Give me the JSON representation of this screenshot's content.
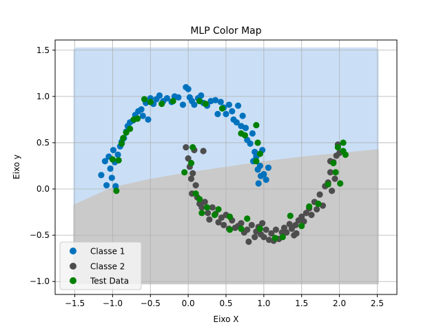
{
  "chart_data": {
    "type": "scatter",
    "title": "MLP Color Map",
    "xlabel": "Eixo X",
    "ylabel": "Eixo y",
    "xlim": [
      -1.76,
      2.76
    ],
    "ylim": [
      -1.14,
      1.61
    ],
    "x_ticks": [
      -1.5,
      -1.0,
      -0.5,
      0.0,
      0.5,
      1.0,
      1.5,
      2.0,
      2.5
    ],
    "x_tick_labels": [
      "−1.5",
      "−1.0",
      "−0.5",
      "0.0",
      "0.5",
      "1.0",
      "1.5",
      "2.0",
      "2.5"
    ],
    "y_ticks": [
      -1.0,
      -0.5,
      0.0,
      0.5,
      1.0,
      1.5
    ],
    "y_tick_labels": [
      "−1.0",
      "−0.5",
      "0.0",
      "0.5",
      "1.0",
      "1.5"
    ],
    "grid": true,
    "legend_position": "lower-left",
    "colors": {
      "region_class1": "#cadff6",
      "region_class2": "#cacaca",
      "class1": "#0072bd",
      "class2": "#4d4d4d",
      "test": "#008000",
      "grid": "#b0b0b0",
      "legend_bg": "#f5f5f5"
    },
    "decision_region": {
      "x_range": [
        -1.52,
        2.52
      ],
      "y_range": [
        -1.03,
        1.53
      ],
      "boundary": [
        [
          -1.52,
          -0.17
        ],
        [
          -1.0,
          0.02
        ],
        [
          -0.5,
          0.11
        ],
        [
          0.0,
          0.18
        ],
        [
          0.5,
          0.24
        ],
        [
          1.0,
          0.3
        ],
        [
          1.5,
          0.35
        ],
        [
          2.0,
          0.39
        ],
        [
          2.52,
          0.43
        ]
      ]
    },
    "series": [
      {
        "name": "Classe 1",
        "color": "#0072bd",
        "points": [
          [
            -1.15,
            0.15
          ],
          [
            -1.1,
            0.3
          ],
          [
            -1.08,
            0.04
          ],
          [
            -1.05,
            0.35
          ],
          [
            -1.03,
            0.22
          ],
          [
            -1.01,
            0.12
          ],
          [
            -0.99,
            0.42
          ],
          [
            -0.97,
            0.29
          ],
          [
            -0.96,
            0.03
          ],
          [
            -0.93,
            0.37
          ],
          [
            -0.9,
            0.46
          ],
          [
            -0.88,
            0.51
          ],
          [
            -0.85,
            0.55
          ],
          [
            -0.82,
            0.62
          ],
          [
            -0.8,
            0.68
          ],
          [
            -0.77,
            0.72
          ],
          [
            -0.73,
            0.74
          ],
          [
            -0.7,
            0.8
          ],
          [
            -0.66,
            0.84
          ],
          [
            -0.62,
            0.86
          ],
          [
            -0.6,
            0.79
          ],
          [
            -0.56,
            0.93
          ],
          [
            -0.53,
            0.75
          ],
          [
            -0.5,
            0.98
          ],
          [
            -0.46,
            0.92
          ],
          [
            -0.42,
            0.97
          ],
          [
            -0.38,
            1.01
          ],
          [
            -0.33,
            0.95
          ],
          [
            -0.28,
            0.98
          ],
          [
            -0.22,
            0.94
          ],
          [
            -0.18,
            1.0
          ],
          [
            -0.13,
            0.99
          ],
          [
            -0.07,
            0.91
          ],
          [
            -0.03,
            1.1
          ],
          [
            0.0,
            1.08
          ],
          [
            0.02,
            0.99
          ],
          [
            0.05,
            0.95
          ],
          [
            0.08,
            0.91
          ],
          [
            0.13,
            0.98
          ],
          [
            0.17,
            1.01
          ],
          [
            0.2,
            0.93
          ],
          [
            0.25,
            0.9
          ],
          [
            0.3,
            0.95
          ],
          [
            0.36,
            0.96
          ],
          [
            0.39,
            0.81
          ],
          [
            0.43,
            0.94
          ],
          [
            0.47,
            0.88
          ],
          [
            0.5,
            0.81
          ],
          [
            0.54,
            0.91
          ],
          [
            0.58,
            0.84
          ],
          [
            0.6,
            0.75
          ],
          [
            0.64,
            0.72
          ],
          [
            0.66,
            0.9
          ],
          [
            0.7,
            0.68
          ],
          [
            0.72,
            0.79
          ],
          [
            0.76,
            0.66
          ],
          [
            0.78,
            0.53
          ],
          [
            0.82,
            0.49
          ],
          [
            0.85,
            0.6
          ],
          [
            0.88,
            0.4
          ],
          [
            0.9,
            0.35
          ],
          [
            0.92,
            0.21
          ],
          [
            0.93,
            0.06
          ],
          [
            0.95,
            0.25
          ],
          [
            0.98,
            0.42
          ],
          [
            1.0,
            0.16
          ],
          [
            1.03,
            0.1
          ],
          [
            1.06,
            0.23
          ],
          [
            0.96,
            0.14
          ],
          [
            0.86,
            0.3
          ]
        ]
      },
      {
        "name": "Classe 2",
        "color": "#4d4d4d",
        "points": [
          [
            -0.03,
            0.45
          ],
          [
            0.0,
            0.33
          ],
          [
            0.02,
            0.24
          ],
          [
            0.04,
            0.11
          ],
          [
            0.05,
            -0.05
          ],
          [
            0.08,
            0.42
          ],
          [
            0.1,
            0.04
          ],
          [
            0.12,
            -0.09
          ],
          [
            0.15,
            -0.16
          ],
          [
            0.18,
            -0.2
          ],
          [
            0.22,
            -0.14
          ],
          [
            0.26,
            -0.26
          ],
          [
            0.28,
            -0.33
          ],
          [
            0.32,
            -0.2
          ],
          [
            0.36,
            -0.27
          ],
          [
            0.4,
            -0.36
          ],
          [
            0.44,
            -0.31
          ],
          [
            0.47,
            -0.39
          ],
          [
            0.5,
            -0.28
          ],
          [
            0.54,
            -0.43
          ],
          [
            0.58,
            -0.34
          ],
          [
            0.62,
            -0.42
          ],
          [
            0.66,
            -0.4
          ],
          [
            0.7,
            -0.37
          ],
          [
            0.74,
            -0.47
          ],
          [
            0.78,
            -0.44
          ],
          [
            0.8,
            -0.57
          ],
          [
            0.84,
            -0.39
          ],
          [
            0.88,
            -0.52
          ],
          [
            0.9,
            -0.46
          ],
          [
            0.93,
            -0.41
          ],
          [
            0.96,
            -0.49
          ],
          [
            1.0,
            -0.52
          ],
          [
            1.03,
            -0.44
          ],
          [
            1.07,
            -0.55
          ],
          [
            1.1,
            -0.48
          ],
          [
            1.13,
            -0.56
          ],
          [
            1.16,
            -0.44
          ],
          [
            1.2,
            -0.54
          ],
          [
            1.24,
            -0.47
          ],
          [
            1.27,
            -0.42
          ],
          [
            1.3,
            -0.47
          ],
          [
            1.34,
            -0.38
          ],
          [
            1.37,
            -0.43
          ],
          [
            1.4,
            -0.5
          ],
          [
            1.43,
            -0.48
          ],
          [
            1.46,
            -0.34
          ],
          [
            1.5,
            -0.3
          ],
          [
            1.53,
            -0.35
          ],
          [
            1.56,
            -0.26
          ],
          [
            1.6,
            -0.21
          ],
          [
            1.63,
            -0.28
          ],
          [
            1.67,
            -0.14
          ],
          [
            1.7,
            -0.22
          ],
          [
            1.74,
            -0.06
          ],
          [
            1.78,
            -0.18
          ],
          [
            1.81,
            0.03
          ],
          [
            1.85,
            0.07
          ],
          [
            1.88,
            0.18
          ],
          [
            1.9,
            -0.02
          ],
          [
            1.92,
            0.29
          ],
          [
            1.94,
            0.11
          ],
          [
            1.96,
            0.36
          ],
          [
            1.98,
            0.48
          ],
          [
            2.0,
            0.39
          ],
          [
            1.88,
            0.3
          ],
          [
            0.2,
            0.41
          ],
          [
            0.06,
            0.17
          ],
          [
            0.98,
            -0.37
          ],
          [
            1.42,
            -0.39
          ]
        ]
      },
      {
        "name": "Test Data",
        "color": "#008000",
        "points": [
          [
            -0.95,
            -0.02
          ],
          [
            -1.0,
            0.32
          ],
          [
            -0.92,
            0.31
          ],
          [
            -0.88,
            0.49
          ],
          [
            -0.86,
            0.55
          ],
          [
            -0.82,
            0.61
          ],
          [
            -0.77,
            0.65
          ],
          [
            -0.72,
            0.75
          ],
          [
            -0.58,
            0.97
          ],
          [
            -0.5,
            0.94
          ],
          [
            -0.35,
            0.92
          ],
          [
            -0.2,
            0.95
          ],
          [
            0.15,
            0.95
          ],
          [
            0.23,
            0.92
          ],
          [
            0.45,
            0.87
          ],
          [
            0.7,
            0.6
          ],
          [
            0.75,
            0.58
          ],
          [
            0.9,
            0.69
          ],
          [
            0.92,
            0.5
          ],
          [
            0.95,
            0.38
          ],
          [
            0.9,
            0.3
          ],
          [
            -0.05,
            0.18
          ],
          [
            0.04,
            0.28
          ],
          [
            0.06,
            0.45
          ],
          [
            0.1,
            -0.05
          ],
          [
            0.15,
            -0.11
          ],
          [
            0.25,
            -0.2
          ],
          [
            0.35,
            -0.28
          ],
          [
            0.4,
            -0.22
          ],
          [
            0.55,
            -0.3
          ],
          [
            0.55,
            -0.44
          ],
          [
            0.7,
            -0.43
          ],
          [
            0.78,
            -0.32
          ],
          [
            0.95,
            -0.43
          ],
          [
            1.15,
            -0.53
          ],
          [
            1.25,
            -0.52
          ],
          [
            1.35,
            -0.29
          ],
          [
            1.5,
            -0.4
          ],
          [
            1.6,
            -0.19
          ],
          [
            1.72,
            -0.16
          ],
          [
            1.85,
            0.05
          ],
          [
            1.95,
            0.18
          ],
          [
            1.98,
            0.45
          ],
          [
            2.05,
            0.41
          ],
          [
            2.08,
            0.37
          ],
          [
            2.05,
            0.5
          ],
          [
            1.92,
            0.28
          ],
          [
            2.01,
            0.06
          ],
          [
            -0.67,
            0.76
          ],
          [
            0.18,
            -0.26
          ]
        ]
      }
    ]
  }
}
